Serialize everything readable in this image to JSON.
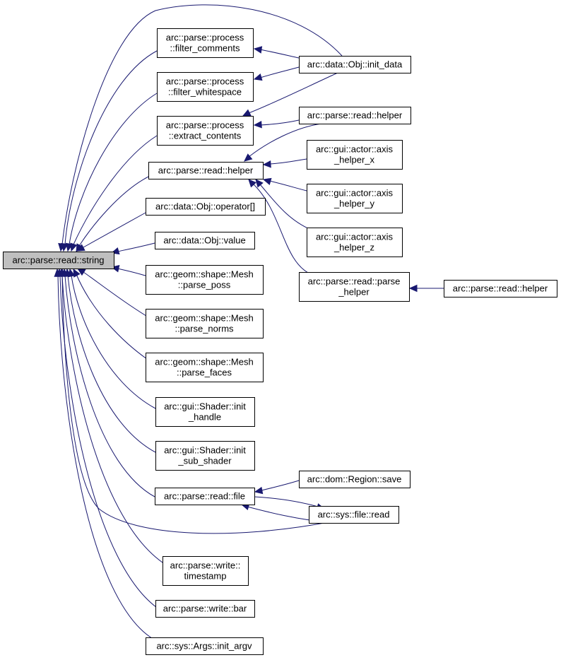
{
  "colors": {
    "edge": "#191970",
    "root_fill": "#bfbfbf",
    "node_fill": "#ffffff",
    "node_border": "#000000"
  },
  "root": {
    "id": "n_read_string",
    "lines": [
      "arc::parse::read::string"
    ]
  },
  "nodes": [
    {
      "id": "n_read_string",
      "lines": [
        "arc::parse::read::string"
      ]
    },
    {
      "id": "n_filter_comments",
      "lines": [
        "arc::parse::process",
        "::filter_comments"
      ]
    },
    {
      "id": "n_filter_whitespace",
      "lines": [
        "arc::parse::process",
        "::filter_whitespace"
      ]
    },
    {
      "id": "n_extract_contents",
      "lines": [
        "arc::parse::process",
        "::extract_contents"
      ]
    },
    {
      "id": "n_read_helper_mid",
      "lines": [
        "arc::parse::read::helper"
      ]
    },
    {
      "id": "n_operator",
      "lines": [
        "arc::data::Obj::operator[]"
      ]
    },
    {
      "id": "n_value",
      "lines": [
        "arc::data::Obj::value"
      ]
    },
    {
      "id": "n_parse_poss",
      "lines": [
        "arc::geom::shape::Mesh",
        "::parse_poss"
      ]
    },
    {
      "id": "n_parse_norms",
      "lines": [
        "arc::geom::shape::Mesh",
        "::parse_norms"
      ]
    },
    {
      "id": "n_parse_faces",
      "lines": [
        "arc::geom::shape::Mesh",
        "::parse_faces"
      ]
    },
    {
      "id": "n_init_handle",
      "lines": [
        "arc::gui::Shader::init",
        "_handle"
      ]
    },
    {
      "id": "n_init_sub_shader",
      "lines": [
        "arc::gui::Shader::init",
        "_sub_shader"
      ]
    },
    {
      "id": "n_read_file",
      "lines": [
        "arc::parse::read::file"
      ]
    },
    {
      "id": "n_timestamp",
      "lines": [
        "arc::parse::write::",
        "timestamp"
      ]
    },
    {
      "id": "n_write_bar",
      "lines": [
        "arc::parse::write::bar"
      ]
    },
    {
      "id": "n_init_argv",
      "lines": [
        "arc::sys::Args::init_argv"
      ]
    },
    {
      "id": "n_init_data",
      "lines": [
        "arc::data::Obj::init_data"
      ]
    },
    {
      "id": "n_read_helper_top",
      "lines": [
        "arc::parse::read::helper"
      ]
    },
    {
      "id": "n_axis_x",
      "lines": [
        "arc::gui::actor::axis",
        "_helper_x"
      ]
    },
    {
      "id": "n_axis_y",
      "lines": [
        "arc::gui::actor::axis",
        "_helper_y"
      ]
    },
    {
      "id": "n_axis_z",
      "lines": [
        "arc::gui::actor::axis",
        "_helper_z"
      ]
    },
    {
      "id": "n_parse_helper",
      "lines": [
        "arc::parse::read::parse",
        "_helper"
      ]
    },
    {
      "id": "n_read_helper_right",
      "lines": [
        "arc::parse::read::helper"
      ]
    },
    {
      "id": "n_region_save",
      "lines": [
        "arc::dom::Region::save"
      ]
    },
    {
      "id": "n_sys_file_read",
      "lines": [
        "arc::sys::file::read"
      ]
    }
  ],
  "edges": [
    {
      "from": "n_filter_comments",
      "to": "n_read_string"
    },
    {
      "from": "n_filter_whitespace",
      "to": "n_read_string"
    },
    {
      "from": "n_extract_contents",
      "to": "n_read_string"
    },
    {
      "from": "n_read_helper_mid",
      "to": "n_read_string"
    },
    {
      "from": "n_operator",
      "to": "n_read_string"
    },
    {
      "from": "n_value",
      "to": "n_read_string"
    },
    {
      "from": "n_parse_poss",
      "to": "n_read_string"
    },
    {
      "from": "n_parse_norms",
      "to": "n_read_string"
    },
    {
      "from": "n_parse_faces",
      "to": "n_read_string"
    },
    {
      "from": "n_init_handle",
      "to": "n_read_string"
    },
    {
      "from": "n_init_sub_shader",
      "to": "n_read_string"
    },
    {
      "from": "n_read_file",
      "to": "n_read_string"
    },
    {
      "from": "n_timestamp",
      "to": "n_read_string"
    },
    {
      "from": "n_write_bar",
      "to": "n_read_string"
    },
    {
      "from": "n_init_argv",
      "to": "n_read_string"
    },
    {
      "from": "n_init_data",
      "to": "n_read_string"
    },
    {
      "from": "n_sys_file_read",
      "to": "n_read_string"
    },
    {
      "from": "n_init_data",
      "to": "n_filter_comments"
    },
    {
      "from": "n_init_data",
      "to": "n_filter_whitespace"
    },
    {
      "from": "n_init_data",
      "to": "n_extract_contents"
    },
    {
      "from": "n_read_helper_top",
      "to": "n_extract_contents"
    },
    {
      "from": "n_read_helper_top",
      "to": "n_read_helper_mid"
    },
    {
      "from": "n_axis_x",
      "to": "n_read_helper_mid"
    },
    {
      "from": "n_axis_y",
      "to": "n_read_helper_mid"
    },
    {
      "from": "n_axis_z",
      "to": "n_read_helper_mid"
    },
    {
      "from": "n_parse_helper",
      "to": "n_read_helper_mid"
    },
    {
      "from": "n_read_helper_right",
      "to": "n_parse_helper"
    },
    {
      "from": "n_region_save",
      "to": "n_read_file"
    },
    {
      "from": "n_sys_file_read",
      "to": "n_read_file"
    },
    {
      "from": "n_read_file",
      "to": "n_sys_file_read"
    }
  ]
}
